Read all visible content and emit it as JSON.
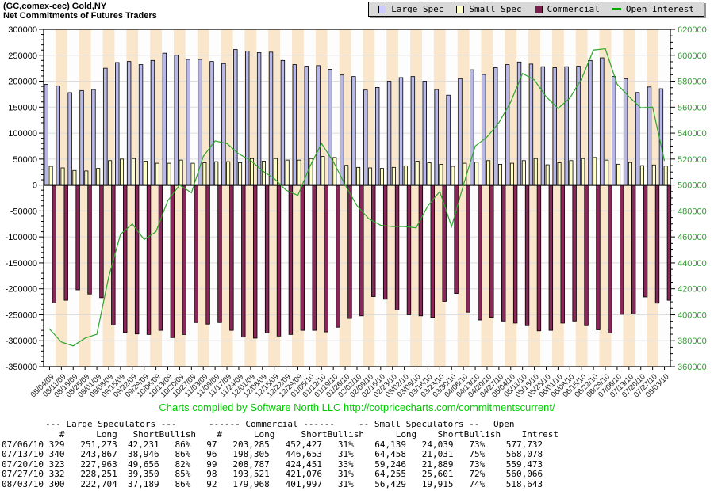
{
  "header": {
    "title": "(GC,comex-cec) Gold,NY",
    "subtitle": "Net Commitments of Futures Traders"
  },
  "legend": {
    "items": [
      {
        "label": "Large Spec",
        "marker": "square",
        "color": "#ccccff"
      },
      {
        "label": "Small Spec",
        "marker": "square",
        "color": "#ffffcc"
      },
      {
        "label": "Commercial",
        "marker": "square",
        "color": "#7a1f4e"
      },
      {
        "label": "Open Interest",
        "marker": "dash",
        "color": "#00a800"
      }
    ]
  },
  "chart_data": {
    "type": "bar",
    "title": "(GC,comex-cec) Gold,NY",
    "subtitle": "Net Commitments of Futures Traders",
    "grid": true,
    "legend_position": "top-right",
    "categories": [
      "08/04/09",
      "08/11/09",
      "08/18/09",
      "08/25/09",
      "09/01/09",
      "09/08/09",
      "09/15/09",
      "09/22/09",
      "09/29/09",
      "10/06/09",
      "10/13/09",
      "10/20/09",
      "10/27/09",
      "11/03/09",
      "11/09/09",
      "11/17/09",
      "11/24/09",
      "12/01/09",
      "12/08/09",
      "12/15/09",
      "12/22/09",
      "12/29/09",
      "01/05/10",
      "01/12/10",
      "01/19/10",
      "01/26/10",
      "02/02/10",
      "02/09/10",
      "02/16/10",
      "02/23/10",
      "03/02/10",
      "03/09/10",
      "03/16/10",
      "03/23/10",
      "03/30/10",
      "04/06/10",
      "04/13/10",
      "04/20/10",
      "04/27/10",
      "05/04/10",
      "05/11/10",
      "05/18/10",
      "05/25/10",
      "06/01/10",
      "06/08/10",
      "06/15/10",
      "06/22/10",
      "06/29/10",
      "07/06/10",
      "07/13/10",
      "07/20/10",
      "07/27/10",
      "08/03/10"
    ],
    "series": [
      {
        "name": "Large Spec",
        "type": "bar",
        "axis": "left",
        "color": "#b8b8e8",
        "values": [
          194000,
          191000,
          178000,
          182000,
          184000,
          225000,
          236000,
          238000,
          232000,
          240000,
          254000,
          250000,
          242000,
          242000,
          238000,
          234000,
          261000,
          258000,
          255000,
          256000,
          240000,
          232000,
          229000,
          230000,
          223000,
          212000,
          209000,
          183000,
          188000,
          200000,
          207000,
          209000,
          200000,
          184000,
          173000,
          205000,
          222000,
          213000,
          226000,
          232000,
          237000,
          233000,
          228000,
          226000,
          228000,
          229000,
          240000,
          245000,
          209042,
          204921,
          178307,
          188901,
          185515
        ]
      },
      {
        "name": "Small Spec",
        "type": "bar",
        "axis": "left",
        "color": "#ffffc8",
        "values": [
          36000,
          33000,
          28000,
          27000,
          32000,
          47000,
          50000,
          51000,
          46000,
          42000,
          42000,
          48000,
          42000,
          43000,
          45000,
          45000,
          43000,
          51000,
          46000,
          51000,
          48000,
          48000,
          51000,
          55000,
          53000,
          38000,
          34000,
          33000,
          32000,
          34000,
          37000,
          46000,
          43000,
          40000,
          36000,
          42000,
          44000,
          47000,
          40000,
          42000,
          47000,
          51000,
          39000,
          43000,
          47000,
          51000,
          53000,
          48000,
          40100,
          43427,
          37357,
          38654,
          36514
        ]
      },
      {
        "name": "Commercial",
        "type": "bar",
        "axis": "left",
        "color": "#8a2659",
        "values": [
          -227000,
          -222000,
          -202000,
          -210000,
          -217000,
          -270000,
          -284000,
          -287000,
          -288000,
          -280000,
          -294000,
          -288000,
          -265000,
          -268000,
          -265000,
          -280000,
          -293000,
          -295000,
          -285000,
          -291000,
          -288000,
          -280000,
          -280000,
          -283000,
          -274000,
          -257000,
          -252000,
          -215000,
          -220000,
          -241000,
          -250000,
          -252000,
          -255000,
          -224000,
          -209000,
          -245000,
          -260000,
          -255000,
          -262000,
          -266000,
          -271000,
          -281000,
          -280000,
          -266000,
          -262000,
          -271000,
          -279000,
          -285000,
          -249142,
          -248348,
          -215664,
          -227555,
          -222029
        ]
      },
      {
        "name": "Open Interest",
        "type": "line",
        "axis": "right",
        "color": "#2ca52c",
        "values": [
          389000,
          379000,
          376000,
          382000,
          385000,
          429000,
          462000,
          470000,
          458000,
          464000,
          488000,
          500000,
          494000,
          522000,
          534000,
          532000,
          524000,
          519000,
          511000,
          505000,
          496000,
          492000,
          514000,
          532000,
          518000,
          500000,
          484000,
          474000,
          469000,
          468000,
          468000,
          467000,
          484000,
          495000,
          468000,
          500000,
          530000,
          537000,
          548000,
          564000,
          586000,
          581000,
          568000,
          559000,
          567000,
          582000,
          604000,
          605000,
          577732,
          568078,
          559473,
          560066,
          518643
        ]
      }
    ],
    "left_axis": {
      "min": -350000,
      "max": 300000,
      "major_step": 50000,
      "minor_step": 10000,
      "tick_labels": [
        "300000",
        "250000",
        "200000",
        "150000",
        "100000",
        "50000",
        "0",
        "-50000",
        "-100000",
        "-150000",
        "-200000",
        "-250000",
        "-300000",
        "-350000"
      ],
      "color": "#000000"
    },
    "right_axis": {
      "min": 360000,
      "max": 620000,
      "major_step": 20000,
      "minor_step": 5000,
      "tick_labels": [
        "620000",
        "600000",
        "580000",
        "560000",
        "540000",
        "520000",
        "500000",
        "480000",
        "460000",
        "440000",
        "420000",
        "400000",
        "380000",
        "360000"
      ],
      "color": "#2f9e2f"
    },
    "plot_style": {
      "stripe_light": "#fdfdfd",
      "stripe_peach": "#f9e6cb",
      "gridline": "#dcdcdc",
      "zero_line": "#000000",
      "frame": "#000000"
    }
  },
  "footer": {
    "credit": "Charts compiled by Software North LLC  http://cotpricecharts.com/commitmentscurrent/"
  },
  "table": {
    "group_headers": [
      "--- Large Speculators ---",
      "------ Commercial ------",
      "-- Small Speculators --",
      "Open"
    ],
    "columns": [
      "#",
      "Long",
      "Short",
      "Bullish",
      "#",
      "Long",
      "Short",
      "Bullish",
      "Long",
      "Short",
      "Bullish",
      "Intrest"
    ],
    "rows": [
      [
        "07/06/10",
        "329",
        "251,273",
        "42,231",
        "86%",
        "97",
        "203,285",
        "452,427",
        "31%",
        "64,139",
        "24,039",
        "73%",
        "577,732"
      ],
      [
        "07/13/10",
        "340",
        "243,867",
        "38,946",
        "86%",
        "96",
        "198,305",
        "446,653",
        "31%",
        "64,458",
        "21,031",
        "75%",
        "568,078"
      ],
      [
        "07/20/10",
        "323",
        "227,963",
        "49,656",
        "82%",
        "99",
        "208,787",
        "424,451",
        "33%",
        "59,246",
        "21,889",
        "73%",
        "559,473"
      ],
      [
        "07/27/10",
        "332",
        "228,251",
        "39,350",
        "85%",
        "98",
        "193,521",
        "421,076",
        "31%",
        "64,255",
        "25,601",
        "72%",
        "560,066"
      ],
      [
        "08/03/10",
        "300",
        "222,704",
        "37,189",
        "86%",
        "92",
        "179,968",
        "401,997",
        "31%",
        "56,429",
        "19,915",
        "74%",
        "518,643"
      ]
    ]
  }
}
